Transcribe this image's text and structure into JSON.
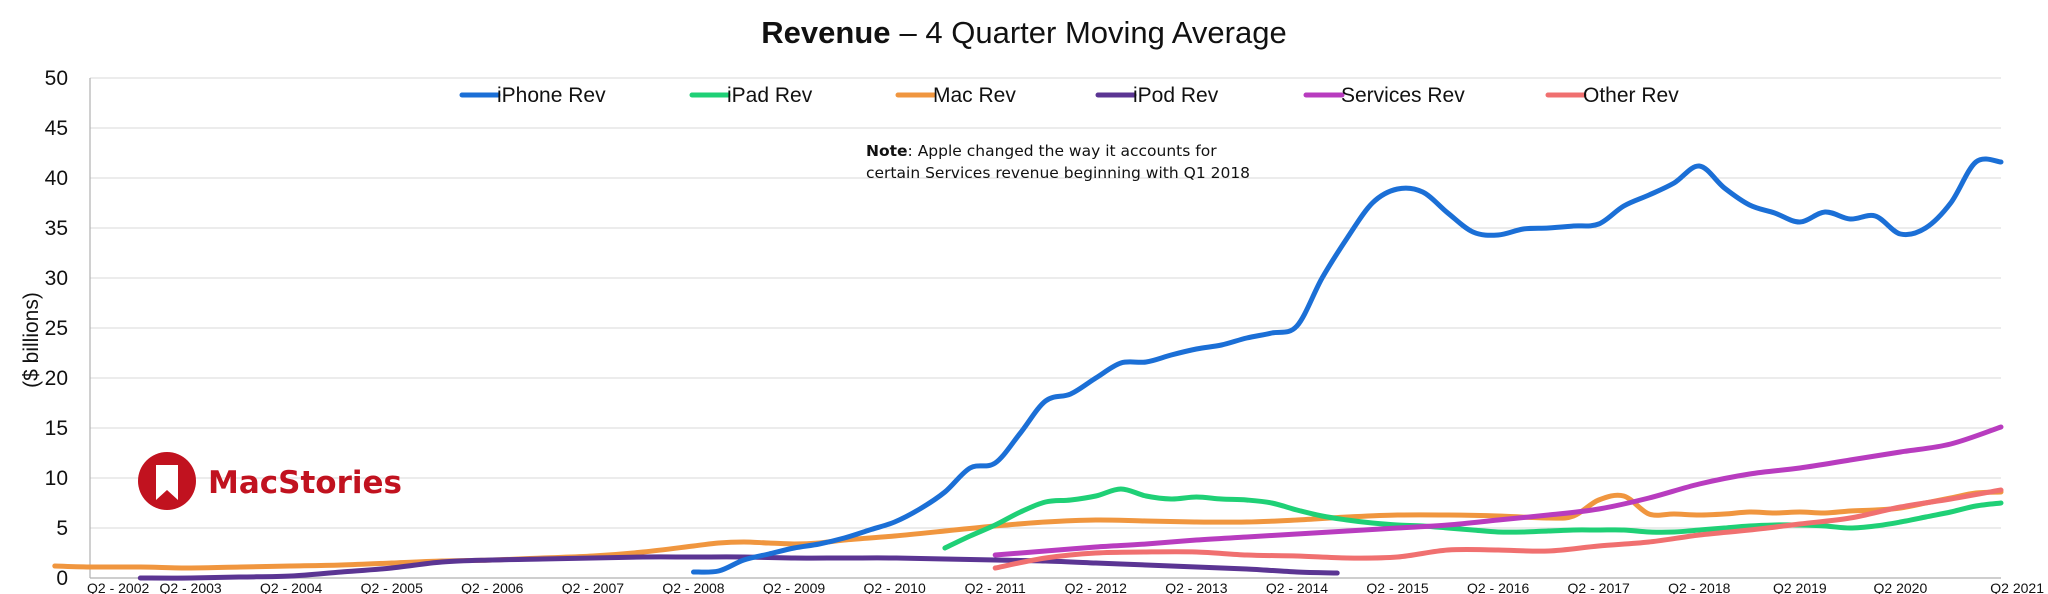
{
  "chart_data": {
    "type": "line",
    "title": "Revenue",
    "subtitle": "– 4 Quarter Moving Average",
    "ylabel": "($ billions)",
    "xlabel": "",
    "ylim": [
      0,
      50
    ],
    "yticks": [
      0,
      5,
      10,
      15,
      20,
      25,
      30,
      35,
      40,
      45,
      50
    ],
    "x_range": [
      2002.25,
      2021.25
    ],
    "xtick_positions": [
      2002.25,
      2003.25,
      2004.25,
      2005.25,
      2006.25,
      2007.25,
      2008.25,
      2009.25,
      2010.25,
      2011.25,
      2012.25,
      2013.25,
      2014.25,
      2015.25,
      2016.25,
      2017.25,
      2018.25,
      2019.25,
      2020.25,
      2021.25
    ],
    "xtick_labels": [
      "Q2 - 2002",
      "Q2 - 2003",
      "Q2 - 2004",
      "Q2 - 2005",
      "Q2 - 2006",
      "Q2 - 2007",
      "Q2 - 2008",
      "Q2 - 2009",
      "Q2 - 2010",
      "Q2 - 2011",
      "Q2 - 2012",
      "Q2 - 2013",
      "Q2 - 2014",
      "Q2 - 2015",
      "Q2 - 2016",
      "Q2 - 2017",
      "Q2 - 2018",
      "Q2 2019",
      "Q2 2020",
      "Q2 2021"
    ],
    "grid": true,
    "legend_position": "top",
    "note_bold": "Note",
    "note_lines": [
      ": Apple changed the way it accounts for",
      "certain Services revenue beginning with Q1 2018"
    ],
    "series": [
      {
        "name": "iPhone Rev",
        "color": "#1b6fd6",
        "x": [
          2008.25,
          2008.5,
          2008.75,
          2009.0,
          2009.25,
          2009.5,
          2009.75,
          2010.0,
          2010.25,
          2010.5,
          2010.75,
          2011.0,
          2011.25,
          2011.5,
          2011.75,
          2012.0,
          2012.25,
          2012.5,
          2012.75,
          2013.0,
          2013.25,
          2013.5,
          2013.75,
          2014.0,
          2014.25,
          2014.5,
          2014.75,
          2015.0,
          2015.25,
          2015.5,
          2015.75,
          2016.0,
          2016.25,
          2016.5,
          2016.75,
          2017.0,
          2017.25,
          2017.5,
          2017.75,
          2018.0,
          2018.25,
          2018.5,
          2018.75,
          2019.0,
          2019.25,
          2019.5,
          2019.75,
          2020.0,
          2020.25,
          2020.5,
          2020.75,
          2021.0,
          2021.25
        ],
        "y": [
          0.6,
          0.7,
          1.8,
          2.4,
          3.0,
          3.4,
          4.0,
          4.8,
          5.6,
          6.9,
          8.6,
          11.0,
          11.5,
          14.5,
          17.7,
          18.4,
          20.0,
          21.5,
          21.6,
          22.3,
          22.9,
          23.3,
          24.0,
          24.5,
          25.2,
          30.0,
          34.0,
          37.5,
          38.9,
          38.6,
          36.5,
          34.6,
          34.3,
          34.9,
          35.0,
          35.2,
          35.4,
          37.2,
          38.3,
          39.5,
          41.2,
          39.0,
          37.3,
          36.5,
          35.6,
          36.6,
          35.9,
          36.2,
          34.4,
          35.0,
          37.5,
          41.6,
          41.6
        ]
      },
      {
        "name": "iPad Rev",
        "color": "#1fd076",
        "x": [
          2010.75,
          2011.0,
          2011.25,
          2011.5,
          2011.75,
          2012.0,
          2012.25,
          2012.5,
          2012.75,
          2013.0,
          2013.25,
          2013.5,
          2013.75,
          2014.0,
          2014.25,
          2014.5,
          2014.75,
          2015.0,
          2015.25,
          2015.5,
          2015.75,
          2016.0,
          2016.25,
          2016.5,
          2016.75,
          2017.0,
          2017.25,
          2017.5,
          2017.75,
          2018.0,
          2018.25,
          2018.5,
          2018.75,
          2019.0,
          2019.25,
          2019.5,
          2019.75,
          2020.0,
          2020.25,
          2020.5,
          2020.75,
          2021.0,
          2021.25
        ],
        "y": [
          3.0,
          4.2,
          5.3,
          6.6,
          7.6,
          7.8,
          8.2,
          8.9,
          8.2,
          7.9,
          8.1,
          7.9,
          7.8,
          7.5,
          6.8,
          6.2,
          5.8,
          5.5,
          5.3,
          5.2,
          5.0,
          4.8,
          4.6,
          4.6,
          4.7,
          4.8,
          4.8,
          4.8,
          4.6,
          4.6,
          4.8,
          5.0,
          5.2,
          5.3,
          5.3,
          5.2,
          5.0,
          5.2,
          5.6,
          6.1,
          6.6,
          7.2,
          7.5
        ]
      },
      {
        "name": "Mac Rev",
        "color": "#f0963f",
        "x": [
          2001.9,
          2002.25,
          2002.75,
          2003.25,
          2003.75,
          2004.25,
          2004.75,
          2005.25,
          2005.75,
          2006.25,
          2006.75,
          2007.25,
          2007.75,
          2008.25,
          2008.5,
          2008.75,
          2009.0,
          2009.25,
          2009.5,
          2009.75,
          2010.25,
          2010.75,
          2011.25,
          2011.75,
          2012.25,
          2012.75,
          2013.25,
          2013.75,
          2014.25,
          2014.75,
          2015.25,
          2015.75,
          2016.25,
          2016.75,
          2017.0,
          2017.25,
          2017.5,
          2017.75,
          2018.0,
          2018.25,
          2018.5,
          2018.75,
          2019.0,
          2019.25,
          2019.5,
          2019.75,
          2020.0,
          2020.25,
          2020.5,
          2020.75,
          2021.0,
          2021.25
        ],
        "y": [
          1.2,
          1.1,
          1.1,
          1.0,
          1.1,
          1.2,
          1.3,
          1.5,
          1.7,
          1.8,
          2.0,
          2.2,
          2.6,
          3.2,
          3.5,
          3.6,
          3.5,
          3.4,
          3.5,
          3.8,
          4.2,
          4.7,
          5.2,
          5.6,
          5.8,
          5.7,
          5.6,
          5.6,
          5.8,
          6.1,
          6.3,
          6.3,
          6.2,
          6.0,
          6.2,
          7.8,
          8.2,
          6.4,
          6.4,
          6.3,
          6.4,
          6.6,
          6.5,
          6.6,
          6.5,
          6.7,
          6.8,
          7.0,
          7.5,
          8.0,
          8.5,
          8.6
        ]
      },
      {
        "name": "iPod Rev",
        "color": "#5b3593",
        "x": [
          2002.75,
          2003.25,
          2003.75,
          2004.25,
          2004.75,
          2005.25,
          2005.75,
          2006.25,
          2006.75,
          2007.25,
          2007.75,
          2008.25,
          2008.75,
          2009.25,
          2009.75,
          2010.25,
          2010.75,
          2011.25,
          2011.75,
          2012.25,
          2012.75,
          2013.25,
          2013.75,
          2014.25,
          2014.65
        ],
        "y": [
          0.0,
          0.0,
          0.1,
          0.2,
          0.6,
          1.0,
          1.6,
          1.8,
          1.9,
          2.0,
          2.1,
          2.1,
          2.1,
          2.0,
          2.0,
          2.0,
          1.9,
          1.8,
          1.7,
          1.5,
          1.3,
          1.1,
          0.9,
          0.6,
          0.5
        ]
      },
      {
        "name": "Services Rev",
        "color": "#b83cbf",
        "x": [
          2011.25,
          2011.75,
          2012.25,
          2012.75,
          2013.25,
          2013.75,
          2014.25,
          2014.75,
          2015.25,
          2015.75,
          2016.25,
          2016.75,
          2017.25,
          2017.75,
          2018.25,
          2018.75,
          2019.25,
          2019.75,
          2020.25,
          2020.75,
          2021.25
        ],
        "y": [
          2.3,
          2.7,
          3.1,
          3.4,
          3.8,
          4.1,
          4.4,
          4.7,
          5.0,
          5.3,
          5.8,
          6.3,
          6.9,
          8.0,
          9.4,
          10.4,
          11.0,
          11.8,
          12.6,
          13.4,
          15.1
        ]
      },
      {
        "name": "Other Rev",
        "color": "#f07070",
        "x": [
          2011.25,
          2011.75,
          2012.25,
          2012.75,
          2013.25,
          2013.75,
          2014.25,
          2014.75,
          2015.25,
          2015.75,
          2016.25,
          2016.75,
          2017.25,
          2017.75,
          2018.25,
          2018.75,
          2019.25,
          2019.75,
          2020.25,
          2020.75,
          2021.25
        ],
        "y": [
          1.0,
          2.0,
          2.5,
          2.6,
          2.6,
          2.3,
          2.2,
          2.0,
          2.1,
          2.8,
          2.8,
          2.7,
          3.2,
          3.6,
          4.3,
          4.8,
          5.4,
          6.0,
          7.1,
          7.9,
          8.8
        ]
      }
    ]
  },
  "logo": {
    "text": "MacStories",
    "color": "#c1121f"
  }
}
